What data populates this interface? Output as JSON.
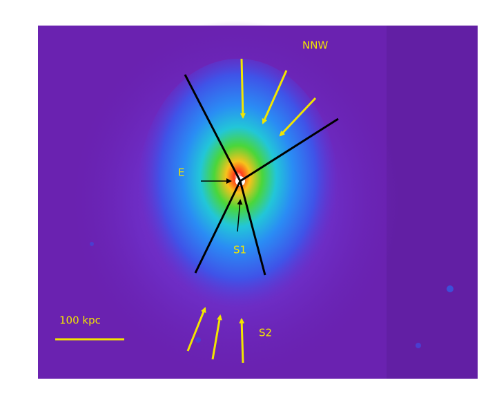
{
  "annotations": {
    "nnw": "NNW",
    "east": "E",
    "s1": "S1",
    "s2": "S2",
    "scale_bar": "100 kpc"
  }
}
